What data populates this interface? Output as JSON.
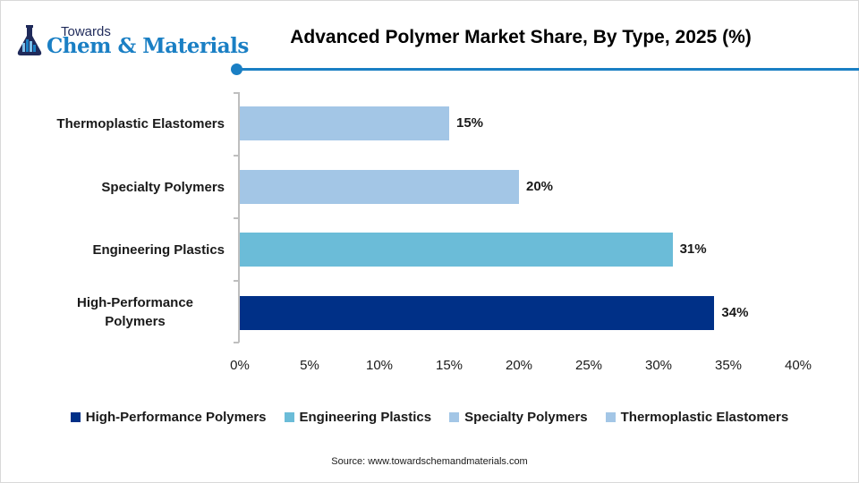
{
  "logo": {
    "icon": "flask-icon",
    "towards": "Towards",
    "name": "Chem & Materials"
  },
  "title": "Advanced Polymer Market Share, By Type, 2025 (%)",
  "source": "Source: www.towardschemandmaterials.com",
  "colors": {
    "accent": "#1a7fc4",
    "high_performance": "#003087",
    "engineering": "#6bbcd8",
    "specialty": "#a3c6e6",
    "thermoplastic": "#a3c6e6"
  },
  "chart_data": {
    "type": "bar",
    "orientation": "horizontal",
    "title": "Advanced Polymer Market Share, By Type, 2025 (%)",
    "xlabel": "",
    "ylabel": "",
    "categories": [
      "Thermoplastic Elastomers",
      "Specialty Polymers",
      "Engineering Plastics",
      "High-Performance Polymers"
    ],
    "values": [
      15,
      20,
      31,
      34
    ],
    "data_labels": [
      "15%",
      "20%",
      "31%",
      "34%"
    ],
    "bar_colors": [
      "#a3c6e6",
      "#a3c6e6",
      "#6bbcd8",
      "#003087"
    ],
    "xlim": [
      0,
      40
    ],
    "x_ticks": [
      "0%",
      "5%",
      "10%",
      "15%",
      "20%",
      "25%",
      "30%",
      "35%",
      "40%"
    ],
    "grid": false,
    "legend": {
      "position": "bottom",
      "entries": [
        {
          "label": "High-Performance Polymers",
          "color": "#003087"
        },
        {
          "label": "Engineering Plastics",
          "color": "#6bbcd8"
        },
        {
          "label": "Specialty Polymers",
          "color": "#a3c6e6"
        },
        {
          "label": "Thermoplastic Elastomers",
          "color": "#a3c6e6"
        }
      ]
    }
  }
}
